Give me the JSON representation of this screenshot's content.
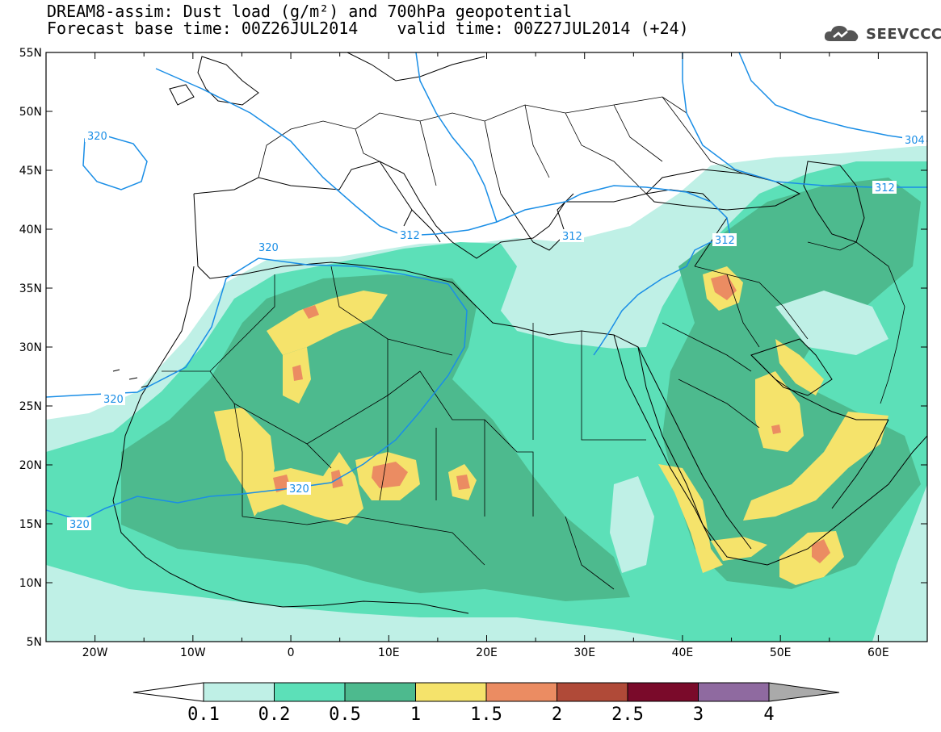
{
  "title": {
    "line1": "DREAM8-assim: Dust load (g/m²) and 700hPa geopotential",
    "line2": "Forecast base time: 00Z26JUL2014    valid time: 00Z27JUL2014 (+24)"
  },
  "logo": {
    "text": "SEEVCCC",
    "icon": "cloud-icon"
  },
  "map": {
    "lon_range": [
      -25,
      65
    ],
    "lat_range": [
      5,
      55
    ],
    "x_ticks": [
      "20W",
      "10W",
      "0",
      "10E",
      "20E",
      "30E",
      "40E",
      "50E",
      "60E"
    ],
    "y_ticks": [
      "55N",
      "50N",
      "45N",
      "40N",
      "35N",
      "30N",
      "25N",
      "20N",
      "15N",
      "10N",
      "5N"
    ],
    "contour_labels": [
      "320",
      "320",
      "312",
      "312",
      "312",
      "312",
      "304",
      "320",
      "320",
      "320"
    ]
  },
  "colorbar": {
    "labels": [
      "0.1",
      "0.2",
      "0.5",
      "1",
      "1.5",
      "2",
      "2.5",
      "3",
      "4"
    ],
    "colors": [
      "#bff0e6",
      "#5ce0b8",
      "#4dba8e",
      "#f5e36b",
      "#eb8c62",
      "#b04a38",
      "#7a0a2a",
      "#8f6aa0",
      "#aaaaaa"
    ]
  }
}
